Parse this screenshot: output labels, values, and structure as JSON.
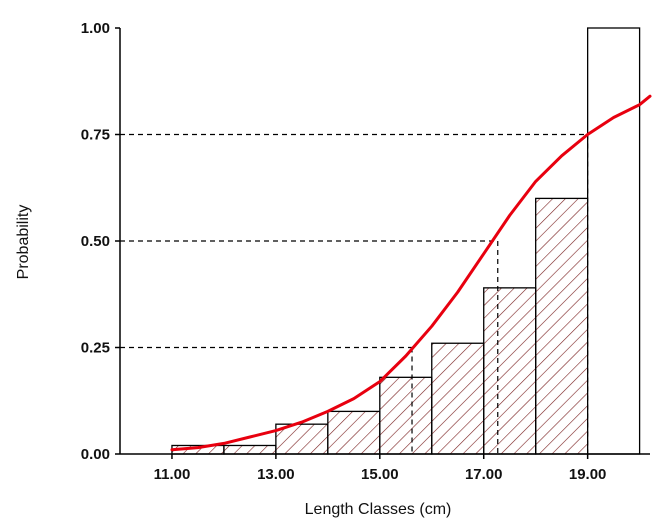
{
  "chart_data": {
    "type": "bar",
    "title": "",
    "xlabel": "Length Classes (cm)",
    "ylabel": "Probability",
    "xlim": [
      10.0,
      20.2
    ],
    "ylim": [
      0,
      1.0
    ],
    "x_ticks": [
      11.0,
      13.0,
      15.0,
      17.0,
      19.0
    ],
    "x_tick_labels": [
      "11.00",
      "13.00",
      "15.00",
      "17.00",
      "19.00"
    ],
    "y_ticks": [
      0,
      0.25,
      0.5,
      0.75,
      1.0
    ],
    "y_tick_labels": [
      "0.00",
      "0.25",
      "0.50",
      "0.75",
      "1.00"
    ],
    "bin_width": 1.0,
    "bars": [
      {
        "x_start": 11.0,
        "value": 0.02,
        "hatched": true
      },
      {
        "x_start": 12.0,
        "value": 0.02,
        "hatched": true
      },
      {
        "x_start": 13.0,
        "value": 0.07,
        "hatched": true
      },
      {
        "x_start": 14.0,
        "value": 0.1,
        "hatched": true
      },
      {
        "x_start": 15.0,
        "value": 0.18,
        "hatched": true
      },
      {
        "x_start": 16.0,
        "value": 0.26,
        "hatched": true
      },
      {
        "x_start": 17.0,
        "value": 0.39,
        "hatched": true
      },
      {
        "x_start": 18.0,
        "value": 0.6,
        "hatched": true
      },
      {
        "x_start": 19.0,
        "value": 1.0,
        "hatched": false
      }
    ],
    "curve": {
      "color": "#e8000f",
      "x": [
        11.0,
        11.5,
        12.0,
        12.5,
        13.0,
        13.5,
        14.0,
        14.5,
        15.0,
        15.5,
        16.0,
        16.5,
        17.0,
        17.5,
        18.0,
        18.5,
        19.0,
        19.5,
        20.0,
        20.2
      ],
      "y": [
        0.01,
        0.015,
        0.025,
        0.04,
        0.055,
        0.075,
        0.1,
        0.13,
        0.17,
        0.23,
        0.3,
        0.38,
        0.47,
        0.56,
        0.64,
        0.7,
        0.75,
        0.79,
        0.82,
        0.84
      ]
    },
    "reference_levels": [
      {
        "y": 0.25,
        "x": 15.62
      },
      {
        "y": 0.5,
        "x": 17.27
      },
      {
        "y": 0.75,
        "x": 19.0
      }
    ],
    "grid": false,
    "legend": "none"
  }
}
